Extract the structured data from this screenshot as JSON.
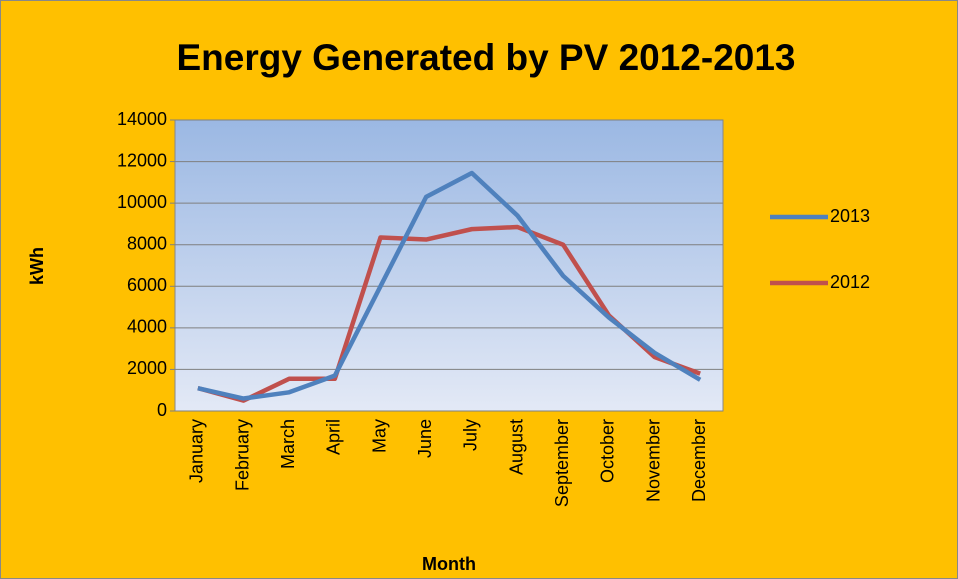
{
  "chart_data": {
    "type": "line",
    "title": "Energy Generated by PV 2012-2013",
    "x_label": "Month",
    "y_label": "kWh",
    "categories": [
      "January",
      "February",
      "March",
      "April",
      "May",
      "June",
      "July",
      "August",
      "September",
      "October",
      "November",
      "December"
    ],
    "series": [
      {
        "name": "2013",
        "color": "#4f81bd",
        "values": [
          1100,
          600,
          900,
          1700,
          6000,
          10300,
          11450,
          9400,
          6500,
          4500,
          2800,
          1500
        ]
      },
      {
        "name": "2012",
        "color": "#c0504d",
        "values": [
          1100,
          500,
          1550,
          1550,
          8350,
          8250,
          8750,
          8850,
          8000,
          4600,
          2600,
          1800
        ]
      }
    ],
    "ylim": [
      0,
      14000
    ],
    "yticks": [
      0,
      2000,
      4000,
      6000,
      8000,
      10000,
      12000,
      14000
    ],
    "grid": true,
    "legend": "right"
  }
}
